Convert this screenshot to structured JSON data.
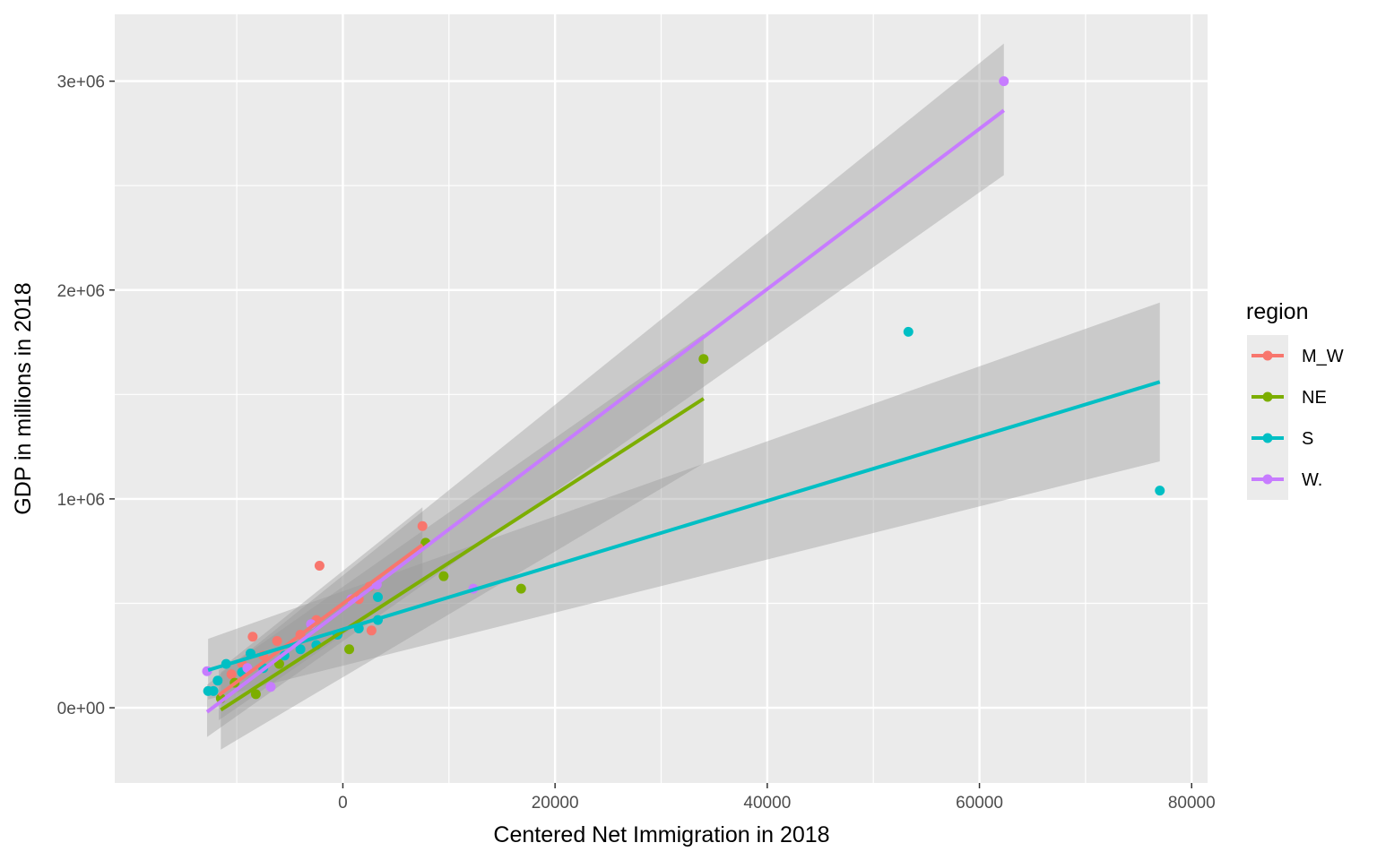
{
  "chart_data": {
    "type": "scatter",
    "xlabel": "Centered Net Immigration in 2018",
    "ylabel": "GDP in millions in 2018",
    "xlim": [
      -21500,
      81500
    ],
    "ylim": [
      -360000,
      3320000
    ],
    "x_ticks": [
      0,
      20000,
      40000,
      60000,
      80000
    ],
    "x_tick_labels": [
      "0",
      "20000",
      "40000",
      "60000",
      "80000"
    ],
    "y_ticks": [
      0,
      1000000,
      2000000,
      3000000
    ],
    "y_tick_labels": [
      "0e+00",
      "1e+06",
      "2e+06",
      "3e+06"
    ],
    "grid": true,
    "legend_position": "right",
    "legend_title": "region",
    "series": [
      {
        "name": "M_W",
        "color": "#F8766D",
        "points": [
          {
            "x": -2200,
            "y": 680000
          },
          {
            "x": 7500,
            "y": 870000
          },
          {
            "x": 2700,
            "y": 370000
          },
          {
            "x": -8500,
            "y": 340000
          },
          {
            "x": -6200,
            "y": 320000
          },
          {
            "x": -4000,
            "y": 350000
          },
          {
            "x": -2500,
            "y": 420000
          },
          {
            "x": 1500,
            "y": 520000
          },
          {
            "x": 2500,
            "y": 580000
          },
          {
            "x": -9500,
            "y": 210000
          },
          {
            "x": -10500,
            "y": 160000
          },
          {
            "x": -7500,
            "y": 250000
          }
        ],
        "fit": {
          "x": [
            -11700,
            7500
          ],
          "y": [
            60000,
            780000
          ]
        },
        "band": {
          "x": [
            -11700,
            7500
          ],
          "lower": [
            -60000,
            610000
          ],
          "upper": [
            180000,
            960000
          ]
        }
      },
      {
        "name": "NE",
        "color": "#7CAE00",
        "points": [
          {
            "x": 34000,
            "y": 1670000
          },
          {
            "x": 7800,
            "y": 790000
          },
          {
            "x": 9500,
            "y": 630000
          },
          {
            "x": 16800,
            "y": 570000
          },
          {
            "x": 600,
            "y": 280000
          },
          {
            "x": -8200,
            "y": 65000
          },
          {
            "x": -6000,
            "y": 210000
          },
          {
            "x": -10200,
            "y": 120000
          },
          {
            "x": -11500,
            "y": 45000
          }
        ],
        "fit": {
          "x": [
            -11500,
            34000
          ],
          "y": [
            -10000,
            1480000
          ]
        },
        "band": {
          "x": [
            -11500,
            34000
          ],
          "lower": [
            -200000,
            1170000
          ],
          "upper": [
            170000,
            1790000
          ]
        }
      },
      {
        "name": "S",
        "color": "#00BFC4",
        "points": [
          {
            "x": 77000,
            "y": 1040000
          },
          {
            "x": 53300,
            "y": 1800000
          },
          {
            "x": 3300,
            "y": 530000
          },
          {
            "x": 3300,
            "y": 420000
          },
          {
            "x": -8700,
            "y": 260000
          },
          {
            "x": -11000,
            "y": 210000
          },
          {
            "x": -11800,
            "y": 130000
          },
          {
            "x": -12700,
            "y": 80000
          },
          {
            "x": -12200,
            "y": 80000
          },
          {
            "x": -7500,
            "y": 190000
          },
          {
            "x": -5500,
            "y": 250000
          },
          {
            "x": -2500,
            "y": 300000
          },
          {
            "x": -500,
            "y": 350000
          },
          {
            "x": 1500,
            "y": 380000
          },
          {
            "x": -9500,
            "y": 170000
          },
          {
            "x": -4000,
            "y": 280000
          }
        ],
        "fit": {
          "x": [
            -12700,
            77000
          ],
          "y": [
            180000,
            1560000
          ]
        },
        "band": {
          "x": [
            -12700,
            77000
          ],
          "lower": [
            40000,
            1180000
          ],
          "upper": [
            330000,
            1940000
          ]
        }
      },
      {
        "name": "W.",
        "color": "#C77CFF",
        "points": [
          {
            "x": 62300,
            "y": 3000000
          },
          {
            "x": -12800,
            "y": 175000
          },
          {
            "x": -6800,
            "y": 100000
          },
          {
            "x": 12300,
            "y": 570000
          },
          {
            "x": 3200,
            "y": 590000
          },
          {
            "x": -9000,
            "y": 190000
          },
          {
            "x": 800,
            "y": 520000
          },
          {
            "x": -3000,
            "y": 400000
          }
        ],
        "fit": {
          "x": [
            -12800,
            62300
          ],
          "y": [
            -20000,
            2860000
          ]
        },
        "band": {
          "x": [
            -12800,
            62300
          ],
          "lower": [
            -140000,
            2550000
          ],
          "upper": [
            110000,
            3180000
          ]
        }
      }
    ]
  }
}
